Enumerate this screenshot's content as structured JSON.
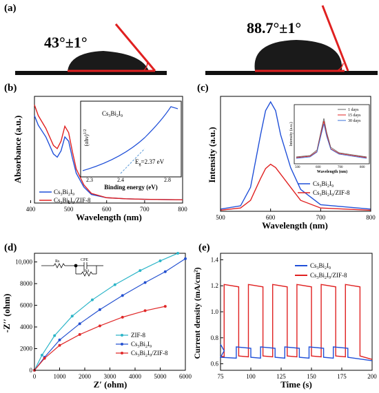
{
  "panel_a": {
    "label": "(a)",
    "left_angle": "43°±1°",
    "right_angle": "88.7°±1°"
  },
  "panel_b": {
    "label": "(b)",
    "xlabel": "Wavelength (nm)",
    "ylabel": "Absorbance (a.u.)",
    "x_ticks": [
      "400",
      "500",
      "600",
      "700",
      "800"
    ],
    "legend": [
      "Cs3Bi2I9",
      "Cs3Bi2I9/ZIF-8"
    ],
    "inset": {
      "title": "Cs3Bi2I9",
      "ylabel": "(αhν)^1/2",
      "xlabel": "Binding energy (eV)",
      "x_ticks": [
        "2.3",
        "2.4",
        "2.8"
      ],
      "annotation": "Eg=2.37 eV"
    },
    "colors": {
      "Cs3Bi2I9": "#1f4fd8",
      "Cs3Bi2I9/ZIF-8": "#e02020"
    }
  },
  "panel_c": {
    "label": "(c)",
    "xlabel": "Wavelength (nm)",
    "ylabel": "Intensity (a.u.)",
    "x_ticks": [
      "500",
      "600",
      "700",
      "800"
    ],
    "legend": [
      "Cs3Bi2I9",
      "Cs3Bi2I9/ZIF-8"
    ],
    "inset": {
      "ylabel": "Intensity (a.u.)",
      "xlabel": "Wavelength (nm)",
      "x_ticks": [
        "500",
        "600",
        "700",
        "800"
      ],
      "legend": [
        "1 days",
        "15 days",
        "30 days"
      ]
    }
  },
  "panel_d": {
    "label": "(d)",
    "xlabel": "Z′ (ohm)",
    "ylabel": "-Z′′ (ohm)",
    "x_ticks": [
      "0",
      "1000",
      "2000",
      "3000",
      "4000",
      "5000",
      "6000"
    ],
    "y_ticks": [
      "0",
      "2000",
      "4000",
      "6000",
      "8000",
      "10,000"
    ],
    "legend": [
      "ZIF-8",
      "Cs3Bi2I9",
      "Cs3Bi2I9/ZIF-8"
    ],
    "circuit": {
      "rs": "Rs",
      "cpe": "CPE",
      "rct": "Rct"
    },
    "colors": {
      "ZIF-8": "#2cb5c8",
      "Cs3Bi2I9": "#2350d0",
      "Cs3Bi2I9/ZIF-8": "#e02828"
    }
  },
  "panel_e": {
    "label": "(e)",
    "xlabel": "Time (s)",
    "ylabel": "Current density (mA/cm²)",
    "x_ticks": [
      "75",
      "100",
      "125",
      "150",
      "175",
      "200"
    ],
    "y_ticks": [
      "0.6",
      "0.8",
      "1.0",
      "1.2",
      "1.4"
    ],
    "legend": [
      "Cs3Bi2I9",
      "Cs3Bi2I9/ZIF-8"
    ]
  },
  "chart_data": [
    {
      "type": "line",
      "panel": "b",
      "xlim": [
        410,
        800
      ],
      "series": [
        {
          "name": "Cs3Bi2I9",
          "x": [
            410,
            420,
            440,
            460,
            470,
            480,
            490,
            500,
            510,
            520,
            540,
            560,
            600,
            650,
            700,
            800
          ],
          "y": [
            0.82,
            0.73,
            0.62,
            0.46,
            0.43,
            0.49,
            0.62,
            0.58,
            0.42,
            0.28,
            0.15,
            0.08,
            0.05,
            0.04,
            0.035,
            0.03
          ]
        },
        {
          "name": "Cs3Bi2I9/ZIF-8",
          "x": [
            410,
            420,
            440,
            460,
            470,
            480,
            490,
            500,
            510,
            520,
            540,
            560,
            600,
            650,
            700,
            800
          ],
          "y": [
            0.92,
            0.82,
            0.7,
            0.54,
            0.51,
            0.58,
            0.72,
            0.66,
            0.48,
            0.32,
            0.17,
            0.09,
            0.05,
            0.04,
            0.035,
            0.03
          ]
        }
      ]
    },
    {
      "type": "line",
      "panel": "c",
      "xlim": [
        500,
        800
      ],
      "series": [
        {
          "name": "Cs3Bi2I9",
          "x": [
            500,
            540,
            560,
            580,
            590,
            600,
            610,
            620,
            640,
            660,
            700,
            800
          ],
          "y": [
            0.02,
            0.05,
            0.22,
            0.7,
            0.92,
            1.0,
            0.92,
            0.7,
            0.4,
            0.2,
            0.06,
            0.02
          ]
        },
        {
          "name": "Cs3Bi2I9/ZIF-8",
          "x": [
            500,
            540,
            560,
            580,
            590,
            600,
            610,
            620,
            640,
            660,
            700,
            800
          ],
          "y": [
            0.01,
            0.03,
            0.1,
            0.3,
            0.39,
            0.43,
            0.4,
            0.34,
            0.22,
            0.1,
            0.03,
            0.01
          ]
        }
      ]
    },
    {
      "type": "scatter",
      "panel": "d",
      "xlim": [
        0,
        6000
      ],
      "ylim": [
        0,
        10800
      ],
      "series": [
        {
          "name": "ZIF-8",
          "x": [
            0,
            300,
            800,
            1500,
            2300,
            3200,
            4200,
            5000,
            5700
          ],
          "y": [
            0,
            1400,
            3200,
            5000,
            6500,
            7900,
            9200,
            10100,
            10800
          ]
        },
        {
          "name": "Cs3Bi2I9",
          "x": [
            0,
            400,
            1000,
            1800,
            2600,
            3500,
            4400,
            5200,
            6000
          ],
          "y": [
            0,
            1200,
            2800,
            4300,
            5600,
            6900,
            8100,
            9100,
            10300
          ]
        },
        {
          "name": "Cs3Bi2I9/ZIF-8",
          "x": [
            0,
            400,
            1000,
            1800,
            2600,
            3500,
            4400,
            5200
          ],
          "y": [
            0,
            1100,
            2300,
            3300,
            4100,
            4900,
            5500,
            5900
          ]
        }
      ]
    },
    {
      "type": "line",
      "panel": "e",
      "xlim": [
        75,
        200
      ],
      "ylim": [
        0.55,
        1.45
      ],
      "series": [
        {
          "name": "Cs3Bi2I9",
          "on": 0.73,
          "off": 0.65
        },
        {
          "name": "Cs3Bi2I9/ZIF-8",
          "on": 1.21,
          "off": 0.66
        }
      ]
    }
  ]
}
